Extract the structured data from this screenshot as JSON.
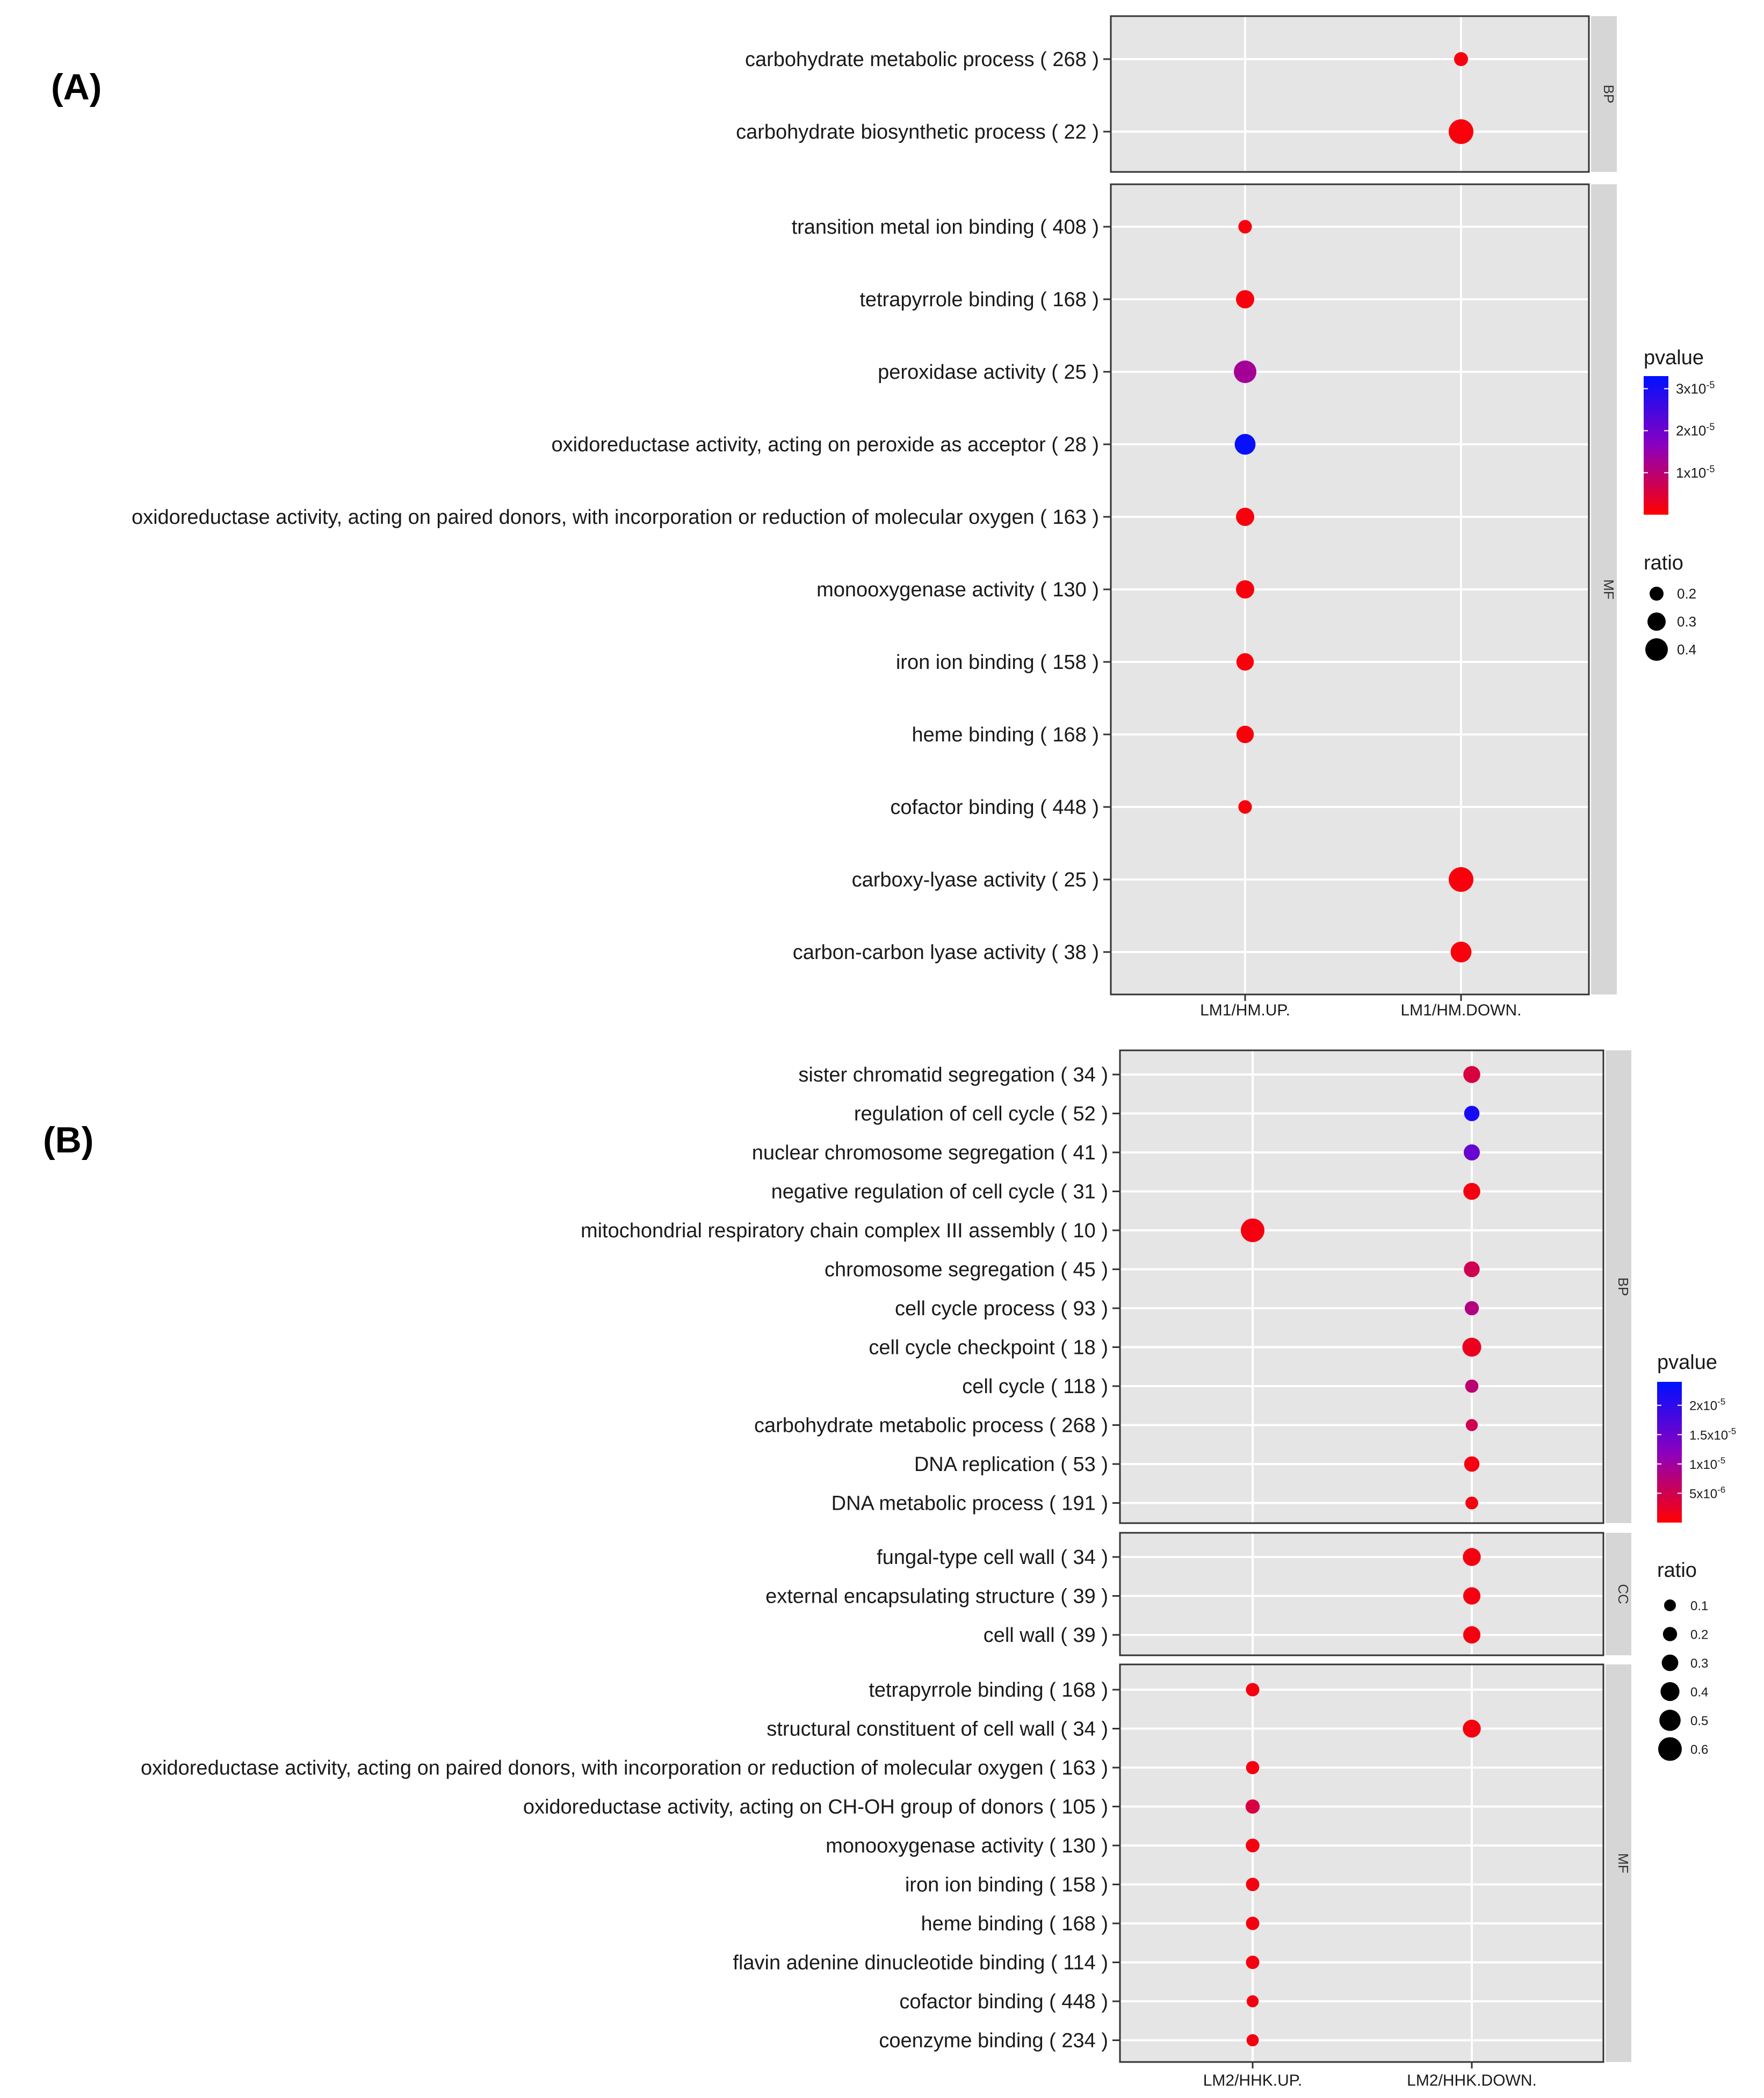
{
  "chart_data": [
    {
      "type": "scatter",
      "panel_label": "(A)",
      "x_categories": [
        "LM1/HM.UP.",
        "LM1/HM.DOWN."
      ],
      "facets": [
        {
          "name": "BP",
          "rows": [
            {
              "label": "carbohydrate metabolic process ( 268 )",
              "points": [
                {
                  "x": "LM1/HM.DOWN.",
                  "ratio": 0.2,
                  "pvalue": 1e-06
                }
              ]
            },
            {
              "label": "carbohydrate biosynthetic process ( 22 )",
              "points": [
                {
                  "x": "LM1/HM.DOWN.",
                  "ratio": 0.45,
                  "pvalue": 1e-06
                }
              ]
            }
          ]
        },
        {
          "name": "MF",
          "rows": [
            {
              "label": "transition metal ion binding ( 408 )",
              "points": [
                {
                  "x": "LM1/HM.UP.",
                  "ratio": 0.19,
                  "pvalue": 1e-06
                }
              ]
            },
            {
              "label": "tetrapyrrole binding ( 168 )",
              "points": [
                {
                  "x": "LM1/HM.UP.",
                  "ratio": 0.3,
                  "pvalue": 1e-06
                }
              ]
            },
            {
              "label": "peroxidase activity ( 25 )",
              "points": [
                {
                  "x": "LM1/HM.UP.",
                  "ratio": 0.4,
                  "pvalue": 1.3e-05
                }
              ]
            },
            {
              "label": "oxidoreductase activity, acting on peroxide as acceptor ( 28 )",
              "points": [
                {
                  "x": "LM1/HM.UP.",
                  "ratio": 0.36,
                  "pvalue": 3.2e-05
                }
              ]
            },
            {
              "label": "oxidoreductase activity, acting on paired donors, with incorporation or reduction of molecular oxygen ( 163 )",
              "points": [
                {
                  "x": "LM1/HM.UP.",
                  "ratio": 0.3,
                  "pvalue": 1e-06
                }
              ]
            },
            {
              "label": "monooxygenase activity ( 130 )",
              "points": [
                {
                  "x": "LM1/HM.UP.",
                  "ratio": 0.3,
                  "pvalue": 1e-06
                }
              ]
            },
            {
              "label": "iron ion binding ( 158 )",
              "points": [
                {
                  "x": "LM1/HM.UP.",
                  "ratio": 0.28,
                  "pvalue": 1e-06
                }
              ]
            },
            {
              "label": "heme binding ( 168 )",
              "points": [
                {
                  "x": "LM1/HM.UP.",
                  "ratio": 0.28,
                  "pvalue": 1e-06
                }
              ]
            },
            {
              "label": "cofactor binding ( 448 )",
              "points": [
                {
                  "x": "LM1/HM.UP.",
                  "ratio": 0.19,
                  "pvalue": 1e-06
                }
              ]
            },
            {
              "label": "carboxy-lyase activity ( 25 )",
              "points": [
                {
                  "x": "LM1/HM.DOWN.",
                  "ratio": 0.45,
                  "pvalue": 1e-06
                }
              ]
            },
            {
              "label": "carbon-carbon lyase activity ( 38 )",
              "points": [
                {
                  "x": "LM1/HM.DOWN.",
                  "ratio": 0.36,
                  "pvalue": 1e-06
                }
              ]
            }
          ]
        }
      ],
      "legend": {
        "color_title": "pvalue",
        "color_range": [
          0,
          3.3e-05
        ],
        "color_ticks": [
          {
            "value": 1e-05,
            "label": "1x10",
            "exp": "-5"
          },
          {
            "value": 2e-05,
            "label": "2x10",
            "exp": "-5"
          },
          {
            "value": 3e-05,
            "label": "3x10",
            "exp": "-5"
          }
        ],
        "size_title": "ratio",
        "size_ticks": [
          {
            "value": 0.2,
            "label": "0.2"
          },
          {
            "value": 0.3,
            "label": "0.3"
          },
          {
            "value": 0.4,
            "label": "0.4"
          }
        ]
      },
      "colors": {
        "low": "#ff0000",
        "mid": "#8b00bf",
        "high": "#0010ff"
      }
    },
    {
      "type": "scatter",
      "panel_label": "(B)",
      "x_categories": [
        "LM2/HHK.UP.",
        "LM2/HHK.DOWN."
      ],
      "facets": [
        {
          "name": "BP",
          "rows": [
            {
              "label": "sister chromatid segregation ( 34 )",
              "points": [
                {
                  "x": "LM2/HHK.DOWN.",
                  "ratio": 0.32,
                  "pvalue": 4e-06
                }
              ]
            },
            {
              "label": "regulation of cell cycle ( 52 )",
              "points": [
                {
                  "x": "LM2/HHK.DOWN.",
                  "ratio": 0.25,
                  "pvalue": 2.2e-05
                }
              ]
            },
            {
              "label": "nuclear chromosome segregation ( 41 )",
              "points": [
                {
                  "x": "LM2/HHK.DOWN.",
                  "ratio": 0.28,
                  "pvalue": 1.5e-05
                }
              ]
            },
            {
              "label": "negative regulation of cell cycle ( 31 )",
              "points": [
                {
                  "x": "LM2/HHK.DOWN.",
                  "ratio": 0.32,
                  "pvalue": 1e-06
                }
              ]
            },
            {
              "label": "mitochondrial respiratory chain complex III assembly ( 10 )",
              "points": [
                {
                  "x": "LM2/HHK.UP.",
                  "ratio": 0.6,
                  "pvalue": 1e-06
                }
              ]
            },
            {
              "label": "chromosome segregation ( 45 )",
              "points": [
                {
                  "x": "LM2/HHK.DOWN.",
                  "ratio": 0.27,
                  "pvalue": 5e-06
                }
              ]
            },
            {
              "label": "cell cycle process ( 93 )",
              "points": [
                {
                  "x": "LM2/HHK.DOWN.",
                  "ratio": 0.2,
                  "pvalue": 8e-06
                }
              ]
            },
            {
              "label": "cell cycle checkpoint ( 18 )",
              "points": [
                {
                  "x": "LM2/HHK.DOWN.",
                  "ratio": 0.4,
                  "pvalue": 2e-06
                }
              ]
            },
            {
              "label": "cell cycle ( 118 )",
              "points": [
                {
                  "x": "LM2/HHK.DOWN.",
                  "ratio": 0.16,
                  "pvalue": 7e-06
                }
              ]
            },
            {
              "label": "carbohydrate metabolic process ( 268 )",
              "points": [
                {
                  "x": "LM2/HHK.DOWN.",
                  "ratio": 0.11,
                  "pvalue": 5e-06
                }
              ]
            },
            {
              "label": "DNA replication ( 53 )",
              "points": [
                {
                  "x": "LM2/HHK.DOWN.",
                  "ratio": 0.25,
                  "pvalue": 1e-06
                }
              ]
            },
            {
              "label": "DNA metabolic process ( 191 )",
              "points": [
                {
                  "x": "LM2/HHK.DOWN.",
                  "ratio": 0.14,
                  "pvalue": 1e-06
                }
              ]
            }
          ]
        },
        {
          "name": "CC",
          "rows": [
            {
              "label": "fungal-type cell wall ( 34 )",
              "points": [
                {
                  "x": "LM2/HHK.DOWN.",
                  "ratio": 0.36,
                  "pvalue": 1e-06
                }
              ]
            },
            {
              "label": "external encapsulating structure ( 39 )",
              "points": [
                {
                  "x": "LM2/HHK.DOWN.",
                  "ratio": 0.33,
                  "pvalue": 1e-06
                }
              ]
            },
            {
              "label": "cell wall ( 39 )",
              "points": [
                {
                  "x": "LM2/HHK.DOWN.",
                  "ratio": 0.33,
                  "pvalue": 1e-06
                }
              ]
            }
          ]
        },
        {
          "name": "MF",
          "rows": [
            {
              "label": "tetrapyrrole binding ( 168 )",
              "points": [
                {
                  "x": "LM2/HHK.UP.",
                  "ratio": 0.17,
                  "pvalue": 1e-06
                }
              ]
            },
            {
              "label": "structural constituent of cell wall ( 34 )",
              "points": [
                {
                  "x": "LM2/HHK.DOWN.",
                  "ratio": 0.36,
                  "pvalue": 1e-06
                }
              ]
            },
            {
              "label": "oxidoreductase activity, acting on paired donors, with incorporation or reduction of molecular oxygen ( 163 )",
              "points": [
                {
                  "x": "LM2/HHK.UP.",
                  "ratio": 0.16,
                  "pvalue": 1e-06
                }
              ]
            },
            {
              "label": "oxidoreductase activity, acting on CH-OH group of donors ( 105 )",
              "points": [
                {
                  "x": "LM2/HHK.UP.",
                  "ratio": 0.2,
                  "pvalue": 4e-06
                }
              ]
            },
            {
              "label": "monooxygenase activity ( 130 )",
              "points": [
                {
                  "x": "LM2/HHK.UP.",
                  "ratio": 0.18,
                  "pvalue": 1e-06
                }
              ]
            },
            {
              "label": "iron ion binding ( 158 )",
              "points": [
                {
                  "x": "LM2/HHK.UP.",
                  "ratio": 0.17,
                  "pvalue": 1e-06
                }
              ]
            },
            {
              "label": "heme binding ( 168 )",
              "points": [
                {
                  "x": "LM2/HHK.UP.",
                  "ratio": 0.17,
                  "pvalue": 1e-06
                }
              ]
            },
            {
              "label": "flavin adenine dinucleotide binding ( 114 )",
              "points": [
                {
                  "x": "LM2/HHK.UP.",
                  "ratio": 0.17,
                  "pvalue": 1e-06
                }
              ]
            },
            {
              "label": "cofactor binding ( 448 )",
              "points": [
                {
                  "x": "LM2/HHK.UP.",
                  "ratio": 0.11,
                  "pvalue": 1e-06
                }
              ]
            },
            {
              "label": "coenzyme binding ( 234 )",
              "points": [
                {
                  "x": "LM2/HHK.UP.",
                  "ratio": 0.12,
                  "pvalue": 1e-06
                }
              ]
            }
          ]
        }
      ],
      "legend": {
        "color_title": "pvalue",
        "color_range": [
          0,
          2.4e-05
        ],
        "color_ticks": [
          {
            "value": 5e-06,
            "label": "5x10",
            "exp": "-6"
          },
          {
            "value": 1e-05,
            "label": "1x10",
            "exp": "-5"
          },
          {
            "value": 1.5e-05,
            "label": "1.5x10",
            "exp": "-5"
          },
          {
            "value": 2e-05,
            "label": "2x10",
            "exp": "-5"
          }
        ],
        "size_title": "ratio",
        "size_ticks": [
          {
            "value": 0.1,
            "label": "0.1"
          },
          {
            "value": 0.2,
            "label": "0.2"
          },
          {
            "value": 0.3,
            "label": "0.3"
          },
          {
            "value": 0.4,
            "label": "0.4"
          },
          {
            "value": 0.5,
            "label": "0.5"
          },
          {
            "value": 0.6,
            "label": "0.6"
          }
        ]
      },
      "colors": {
        "low": "#ff0000",
        "mid": "#8b00bf",
        "high": "#0010ff"
      }
    }
  ]
}
